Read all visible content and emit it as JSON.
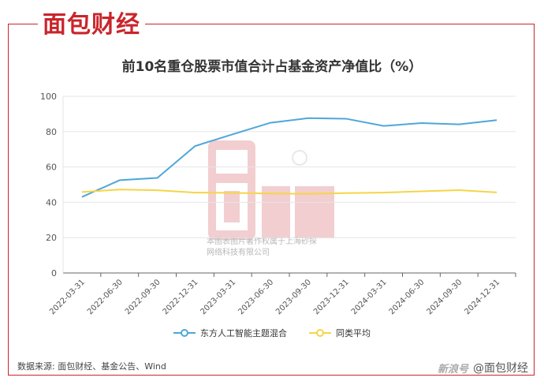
{
  "brand": {
    "logo_text": "面包财经",
    "reg": "®"
  },
  "title": "前10名重仓股票市值合计占基金资产净值比（%）",
  "source": "数据来源: 面包财经、基金公告、Wind",
  "credit": {
    "mark": "新浪号",
    "handle": "@面包财经"
  },
  "watermark": {
    "line1": "本图表图片著作权属于上海砂探",
    "line2": "网络科技有限公司"
  },
  "colors": {
    "frame": "#c9252c",
    "series1": "#4ea7d8",
    "series2": "#f5d547",
    "grid": "#e6e6e6",
    "axis": "#666666"
  },
  "chart_data": {
    "type": "line",
    "title": "前10名重仓股票市值合计占基金资产净值比（%）",
    "categories": [
      "2022-03-31",
      "2022-06-30",
      "2022-09-30",
      "2022-12-31",
      "2023-03-31",
      "2023-06-30",
      "2023-09-30",
      "2023-12-31",
      "2024-03-31",
      "2024-06-30",
      "2024-09-30",
      "2024-12-31"
    ],
    "series": [
      {
        "name": "东方人工智能主题混合",
        "values": [
          43.0,
          52.5,
          53.8,
          71.8,
          78.5,
          85.0,
          87.6,
          87.3,
          83.2,
          84.8,
          84.1,
          86.5
        ]
      },
      {
        "name": "同类平均",
        "values": [
          45.8,
          47.2,
          46.8,
          45.5,
          45.3,
          45.0,
          44.8,
          45.2,
          45.5,
          46.2,
          46.9,
          45.6
        ]
      }
    ],
    "yticks": [
      0,
      20,
      40,
      60,
      80,
      100
    ],
    "ylim": [
      0,
      100
    ],
    "xlabel": "",
    "ylabel": "",
    "grid": true,
    "legend": "bottom"
  }
}
